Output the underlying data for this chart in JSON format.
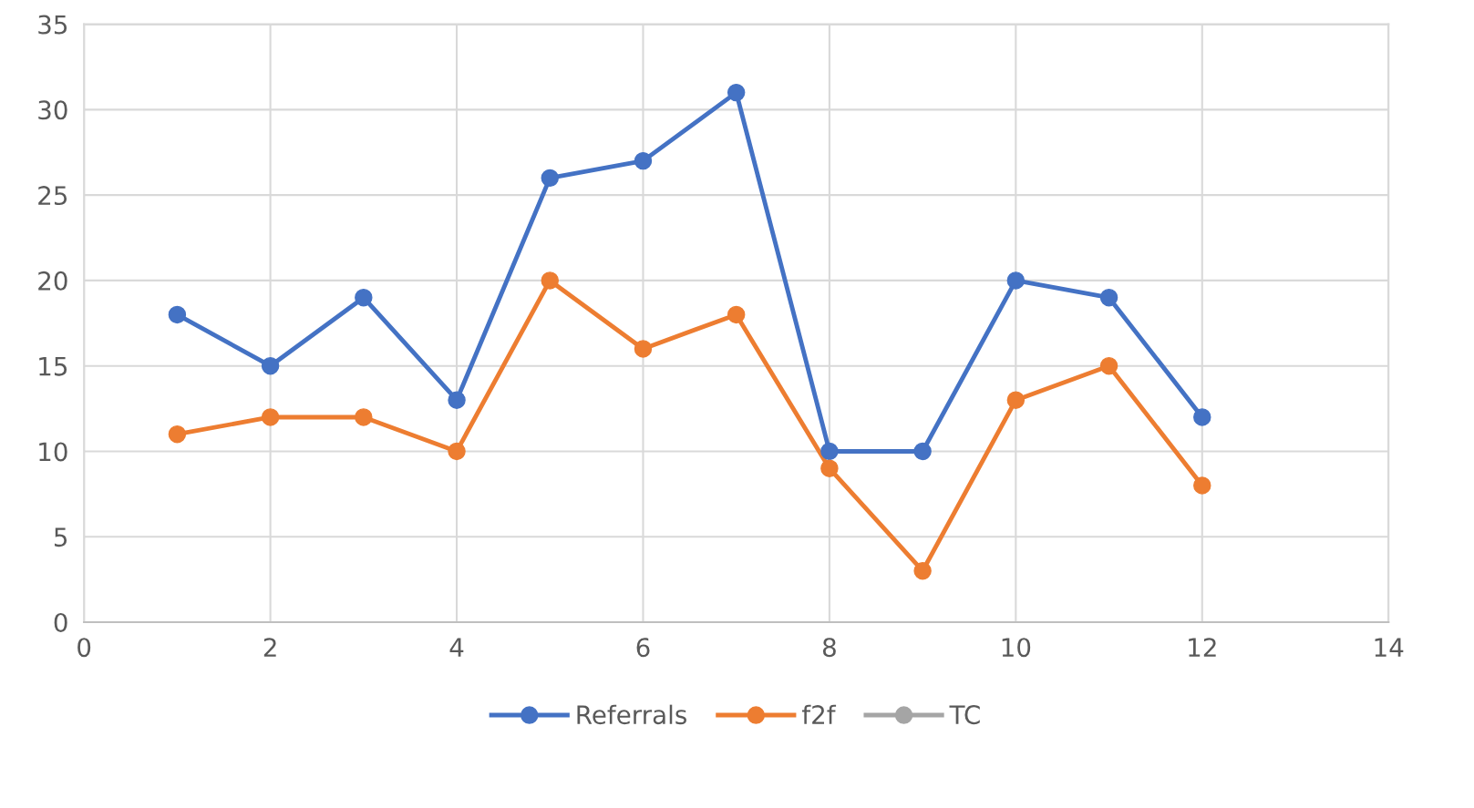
{
  "chart_data": {
    "type": "line",
    "x": [
      1,
      2,
      3,
      4,
      5,
      6,
      7,
      8,
      9,
      10,
      11,
      12
    ],
    "series": [
      {
        "name": "Referrals",
        "color": "#4472c4",
        "values": [
          18,
          15,
          19,
          13,
          26,
          27,
          31,
          10,
          10,
          20,
          19,
          12
        ]
      },
      {
        "name": "f2f",
        "color": "#ed7d31",
        "values": [
          11,
          12,
          12,
          10,
          20,
          16,
          18,
          9,
          3,
          13,
          15,
          8
        ]
      },
      {
        "name": "TC",
        "color": "#a5a5a5",
        "values": [
          null,
          null,
          null,
          null,
          null,
          null,
          null,
          null,
          null,
          null,
          null,
          null
        ]
      }
    ],
    "xlim": [
      0,
      14
    ],
    "xticks": [
      0,
      2,
      4,
      6,
      8,
      10,
      12,
      14
    ],
    "ylim": [
      0,
      35
    ],
    "yticks": [
      0,
      5,
      10,
      15,
      20,
      25,
      30,
      35
    ],
    "grid": true,
    "legend": "bottom",
    "marker": "circle",
    "line_style": "solid"
  }
}
